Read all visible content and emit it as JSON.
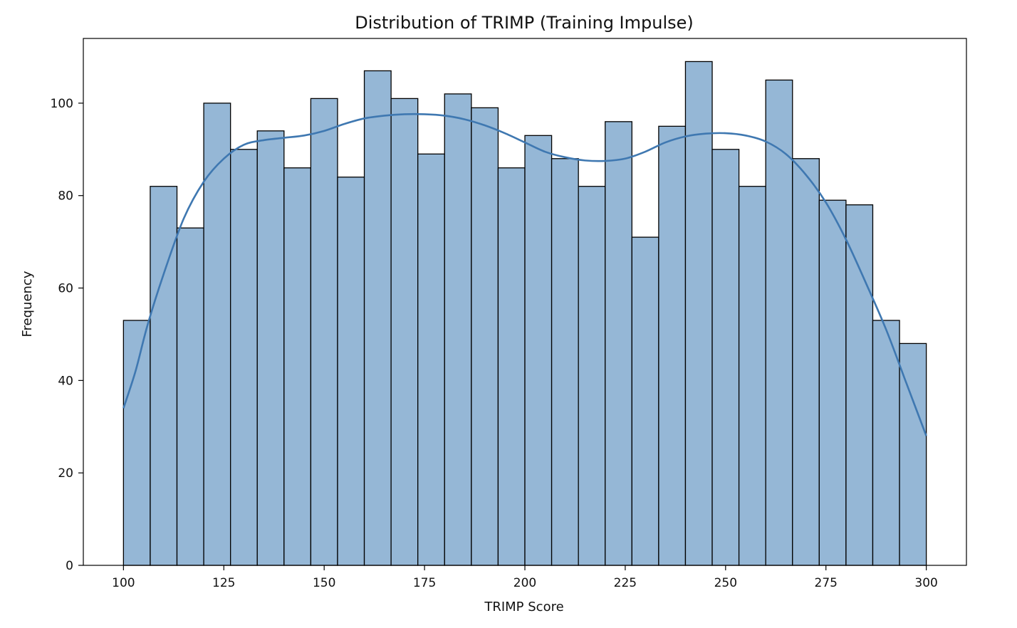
{
  "chart_data": {
    "type": "bar",
    "title": "Distribution of TRIMP (Training Impulse)",
    "xlabel": "TRIMP Score",
    "ylabel": "Frequency",
    "xlim": [
      90,
      310
    ],
    "ylim": [
      0,
      114
    ],
    "xticks": [
      100,
      125,
      150,
      175,
      200,
      225,
      250,
      275,
      300
    ],
    "yticks": [
      0,
      20,
      40,
      60,
      80,
      100
    ],
    "bins": {
      "start": 100,
      "end": 300,
      "count": 30
    },
    "values": [
      53,
      82,
      73,
      100,
      90,
      94,
      86,
      101,
      84,
      107,
      101,
      89,
      102,
      99,
      86,
      93,
      88,
      82,
      96,
      71,
      95,
      109,
      90,
      82,
      105,
      88,
      79,
      78,
      53,
      48
    ],
    "kde": {
      "x": [
        100,
        103,
        106,
        110,
        115,
        120,
        125,
        130,
        135,
        140,
        145,
        150,
        155,
        160,
        165,
        170,
        175,
        180,
        185,
        190,
        195,
        200,
        205,
        210,
        215,
        220,
        225,
        230,
        235,
        240,
        245,
        250,
        255,
        260,
        265,
        270,
        275,
        280,
        285,
        290,
        295,
        300
      ],
      "y": [
        34,
        42,
        52,
        63,
        75,
        83,
        88,
        91,
        92,
        92.5,
        93,
        94,
        95.5,
        96.7,
        97.3,
        97.6,
        97.6,
        97.3,
        96.5,
        95.2,
        93.5,
        91.5,
        89.5,
        88.3,
        87.6,
        87.5,
        88,
        89.5,
        91.5,
        92.8,
        93.4,
        93.5,
        93,
        91.7,
        89,
        84.5,
        78.5,
        70.5,
        61,
        51,
        39.5,
        28
      ],
      "color": "#3f78b1"
    },
    "bar_color": "#95b7d6",
    "grid": false,
    "legend": "none"
  }
}
